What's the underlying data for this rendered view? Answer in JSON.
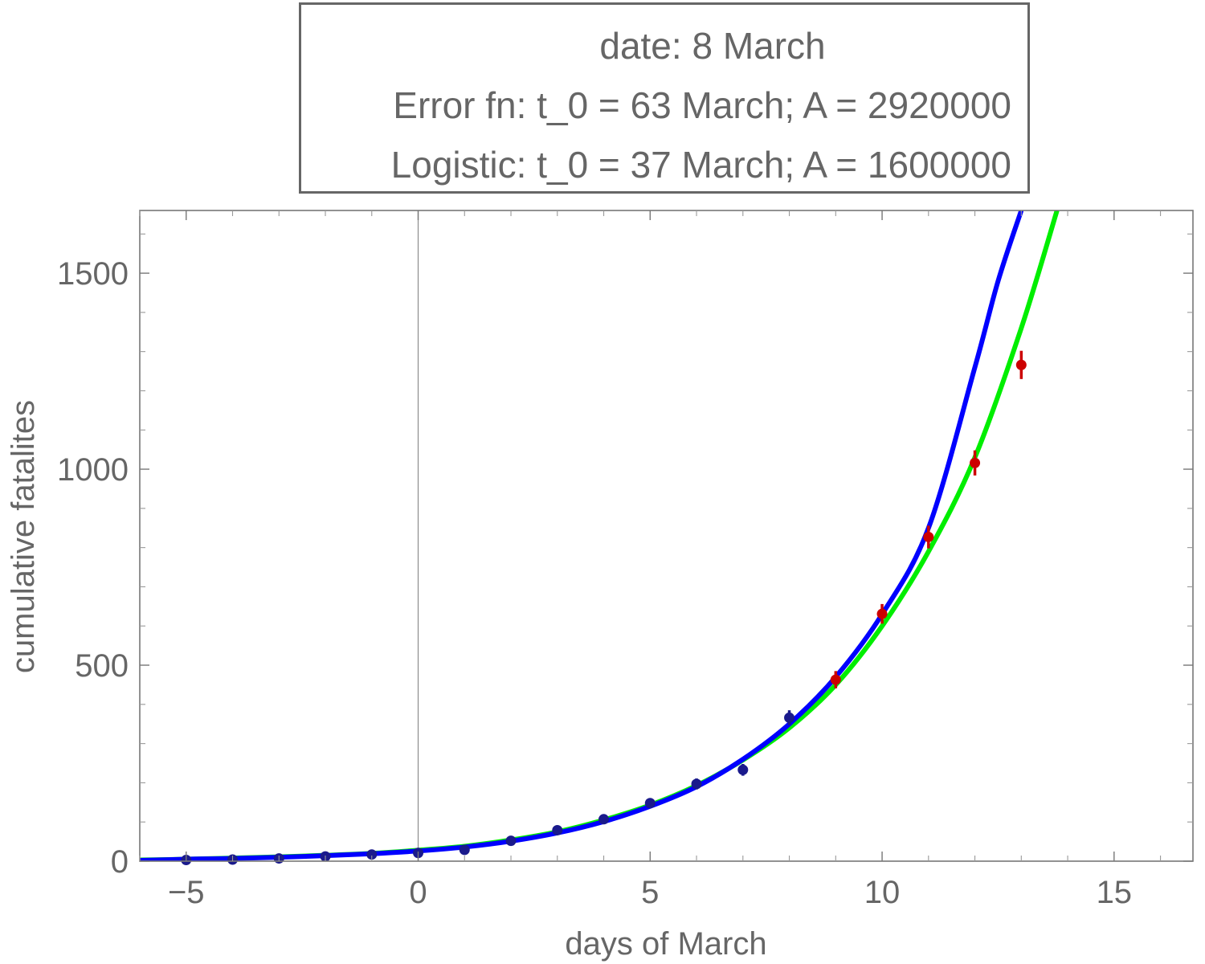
{
  "legend": {
    "date_line": "date: 8 March",
    "erf_line": "Error fn: t_0 = 63 March; A = 2920000",
    "logistic_line": "Logistic: t_0 = 37 March; A = 1600000"
  },
  "chart_data": {
    "type": "scatter",
    "title": "",
    "xlabel": "days of March",
    "ylabel": "cumulative fatalites",
    "xlim": [
      -6,
      16.7
    ],
    "ylim": [
      0,
      1660
    ],
    "xticks": [
      -5,
      0,
      5,
      10,
      15
    ],
    "xtick_labels": [
      "−5",
      "0",
      "5",
      "10",
      "15"
    ],
    "yticks": [
      0,
      500,
      1000,
      1500
    ],
    "ytick_labels": [
      "0",
      "500",
      "1000",
      "1500"
    ],
    "grid": false,
    "series": [
      {
        "color": "#1a1a8c",
        "x": [
          -5,
          -4,
          -3,
          -2,
          -1,
          0,
          1,
          2,
          3,
          4,
          5,
          6,
          7,
          8
        ],
        "y": [
          3,
          4,
          7,
          12,
          17,
          21,
          29,
          52,
          79,
          107,
          148,
          197,
          233,
          366
        ],
        "err": [
          1,
          1,
          2,
          3,
          4,
          4,
          5,
          7,
          8,
          10,
          12,
          14,
          15,
          19
        ]
      },
      {
        "color": "#cc0000",
        "x": [
          9,
          10,
          11,
          12,
          13
        ],
        "y": [
          463,
          631,
          827,
          1016,
          1266
        ],
        "err": [
          22,
          25,
          29,
          32,
          36
        ]
      },
      {
        "color": "#0000ff",
        "curve": "logistic",
        "x": [
          -6,
          -5,
          -4,
          -3,
          -2,
          -1,
          0,
          1,
          2,
          3,
          4,
          5,
          6,
          7,
          8,
          9,
          10,
          11,
          12,
          12.5,
          13
        ],
        "y": [
          2,
          5,
          7,
          10,
          14,
          19,
          26,
          36,
          51,
          72,
          101,
          140,
          190,
          260,
          350,
          470,
          630,
          850,
          1260,
          1480,
          1660
        ]
      },
      {
        "color": "#00ee00",
        "curve": "error function",
        "x": [
          -6,
          -5,
          -4,
          -3,
          -2,
          -1,
          0,
          1,
          2,
          3,
          4,
          5,
          6,
          7,
          8,
          9,
          10,
          11,
          12,
          13,
          13.77
        ],
        "y": [
          3,
          5,
          8,
          11,
          15,
          20,
          28,
          38,
          54,
          75,
          105,
          143,
          193,
          258,
          340,
          450,
          600,
          790,
          1030,
          1360,
          1660
        ]
      }
    ],
    "reference_line_x": 0
  }
}
